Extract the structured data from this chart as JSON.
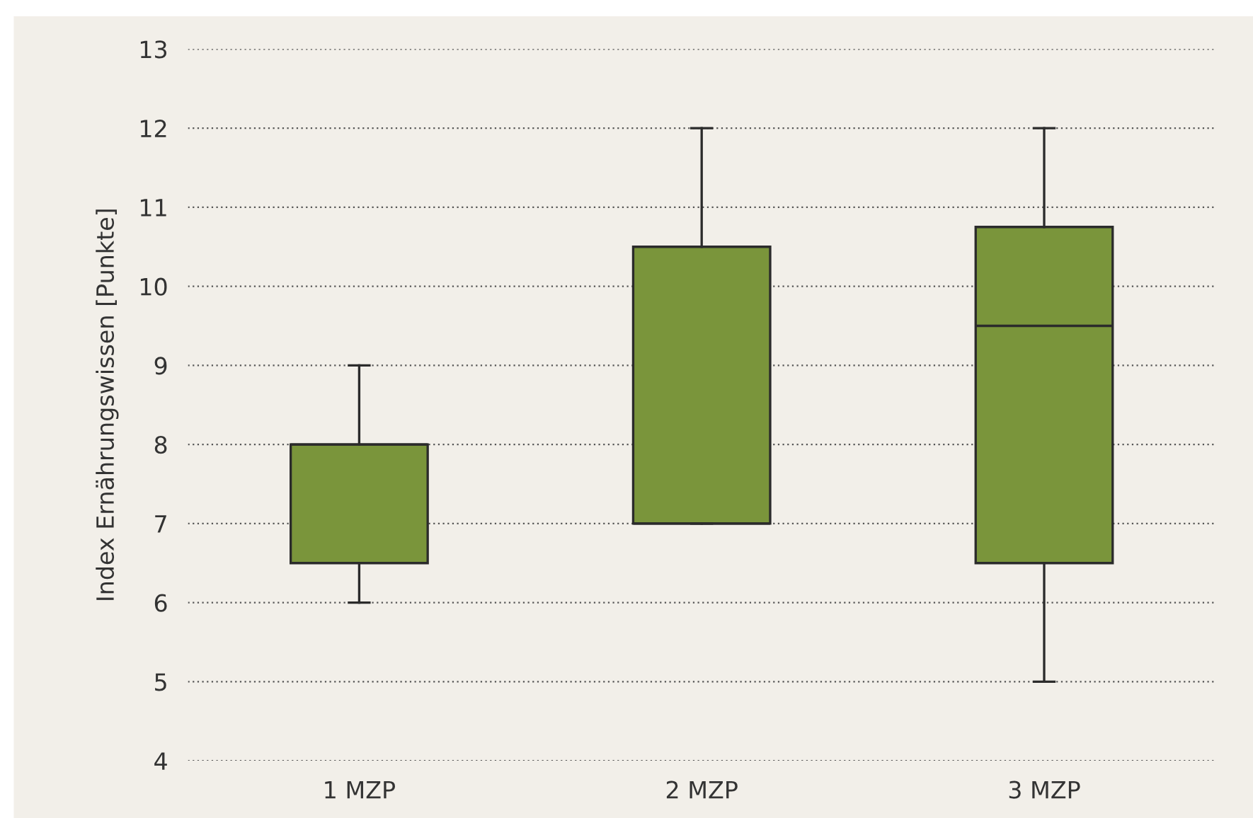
{
  "chart_data": {
    "type": "box",
    "ylabel": "Index Ernährungswissen [Punkte]",
    "categories": [
      "1 MZP",
      "2 MZP",
      "3 MZP"
    ],
    "boxes": [
      {
        "low": 6,
        "q1": 6.5,
        "median": 8,
        "q3": 8,
        "high": 9
      },
      {
        "low": 7,
        "q1": 7,
        "median": 7,
        "q3": 10.5,
        "high": 12
      },
      {
        "low": 5,
        "q1": 6.5,
        "median": 9.5,
        "q3": 10.75,
        "high": 12
      }
    ],
    "color": "#7a953b",
    "ylim": [
      4,
      13
    ],
    "yticks": [
      4,
      5,
      6,
      7,
      8,
      9,
      10,
      11,
      12,
      13
    ],
    "grid": "y",
    "line_style": "solid"
  }
}
